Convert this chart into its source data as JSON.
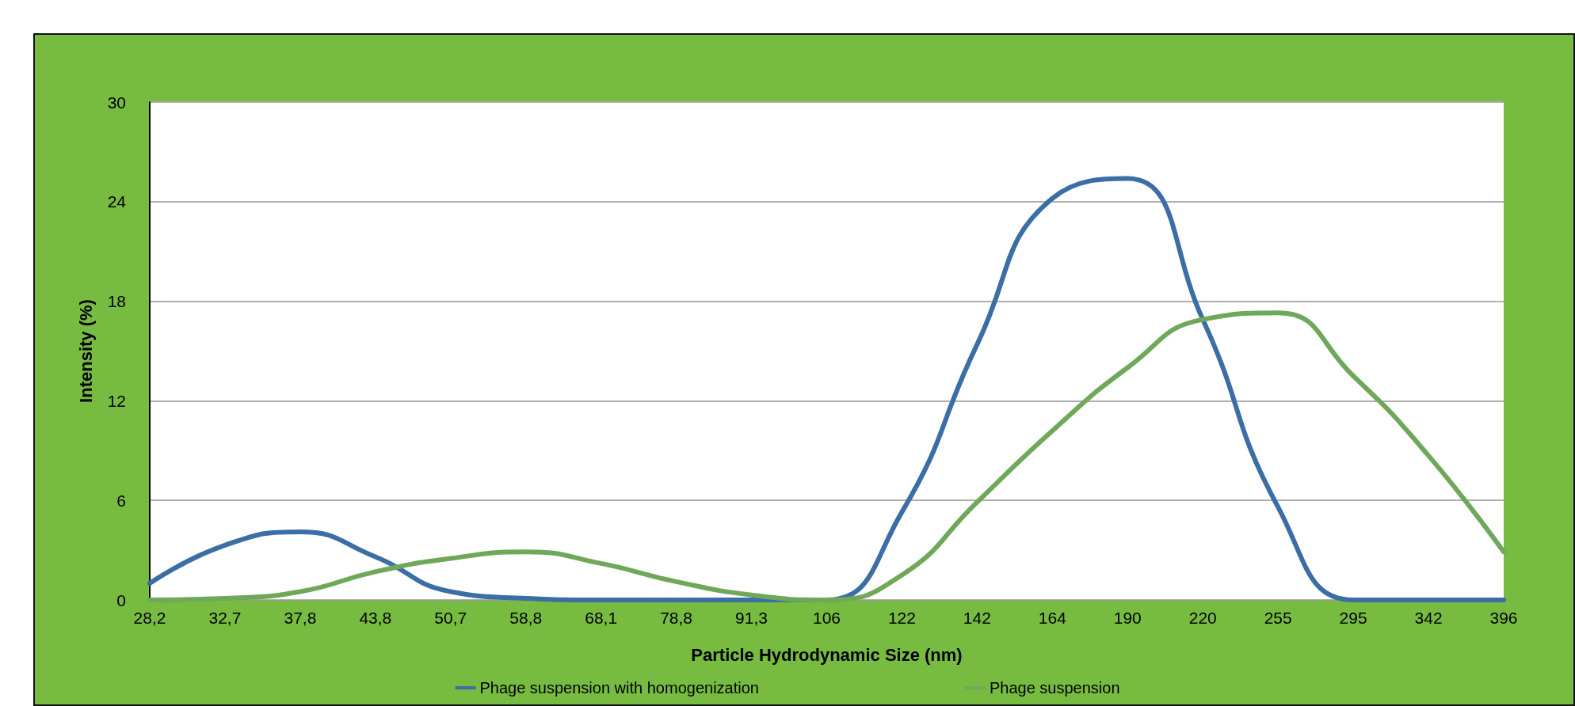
{
  "chart_data": {
    "type": "line",
    "xlabel": "Particle Hydrodynamic Size (nm)",
    "ylabel": "Intensity (%)",
    "categories": [
      "28,2",
      "32,7",
      "37,8",
      "43,8",
      "50,7",
      "58,8",
      "68,1",
      "78,8",
      "91,3",
      "106",
      "122",
      "142",
      "164",
      "190",
      "220",
      "255",
      "295",
      "342",
      "396"
    ],
    "series": [
      {
        "name": "Phage suspension with homogenization",
        "color": "#3b6ea5",
        "values": [
          1.0,
          3.3,
          4.1,
          2.6,
          0.5,
          0.1,
          0,
          0,
          0,
          0,
          5.3,
          15.4,
          24.2,
          25.4,
          16.9,
          5.6,
          0,
          0,
          0
        ]
      },
      {
        "name": "Phage suspension",
        "color": "#6fa85a",
        "values": [
          0,
          0.1,
          0.5,
          1.7,
          2.5,
          2.9,
          2.2,
          1.1,
          0.3,
          0,
          1.5,
          5.9,
          10.2,
          14.0,
          16.9,
          17.3,
          13.5,
          8.7,
          2.9
        ]
      }
    ],
    "ylim": [
      0,
      30
    ],
    "yticks": [
      0,
      6,
      12,
      18,
      24,
      30
    ],
    "grid": "y",
    "legend": "bottom",
    "marker": "none",
    "line_style": "solid"
  }
}
